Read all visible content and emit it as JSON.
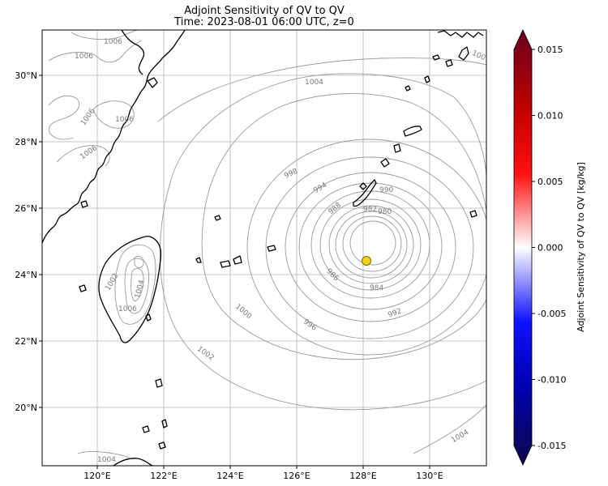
{
  "title_line1": "Adjoint Sensitivity of QV to QV",
  "title_line2": "Time: 2023-08-01 06:00 UTC, z=0",
  "colorbar": {
    "label": "Adjoint Sensitivity of QV to QV [kg/kg]",
    "range": [
      -0.015,
      0.015
    ],
    "ticks": [
      "0.015",
      "0.010",
      "0.005",
      "0.000",
      "-0.005",
      "-0.010",
      "-0.015"
    ],
    "colormap": [
      "#67001f",
      "#ff0000",
      "#ffffff",
      "#0000ff",
      "#0a0a4a"
    ]
  },
  "map": {
    "lon_range": [
      118.3,
      131.7
    ],
    "lat_range": [
      18.3,
      31.4
    ],
    "lon_ticks": [
      "120°E",
      "122°E",
      "124°E",
      "126°E",
      "128°E",
      "130°E"
    ],
    "lat_ticks": [
      "30°N",
      "28°N",
      "26°N",
      "24°N",
      "22°N",
      "20°N"
    ],
    "gridlines": true,
    "coastline_color": "#000000",
    "contour_color": "#9a9a9a",
    "marker": {
      "lon": 128.1,
      "lat": 24.45,
      "color": "#f2d21b"
    }
  },
  "contour_labels": [
    "1006",
    "1006",
    "1006",
    "1006",
    "1006",
    "1004",
    "1004",
    "1004",
    "1006",
    "1002",
    "1000",
    "998",
    "996",
    "994",
    "992",
    "990",
    "988",
    "986",
    "984",
    "982",
    "980",
    "1002",
    "1004",
    "100"
  ]
}
